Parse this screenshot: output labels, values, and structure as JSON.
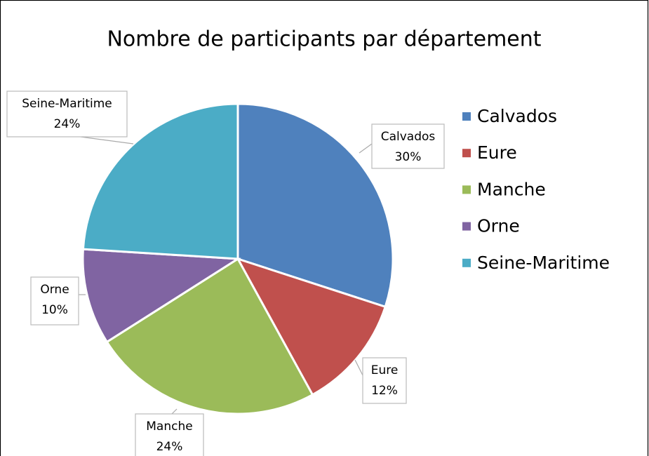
{
  "chart_data": {
    "type": "pie",
    "title": "Nombre de participants par département",
    "categories": [
      "Calvados",
      "Eure",
      "Manche",
      "Orne",
      "Seine-Maritime"
    ],
    "values": [
      30,
      12,
      24,
      10,
      24
    ],
    "value_labels": [
      "30%",
      "12%",
      "24%",
      "10%",
      "24%"
    ],
    "colors": [
      "#4f81bd",
      "#c0504d",
      "#9bbb59",
      "#8064a2",
      "#4bacc6"
    ],
    "legend": "right"
  }
}
